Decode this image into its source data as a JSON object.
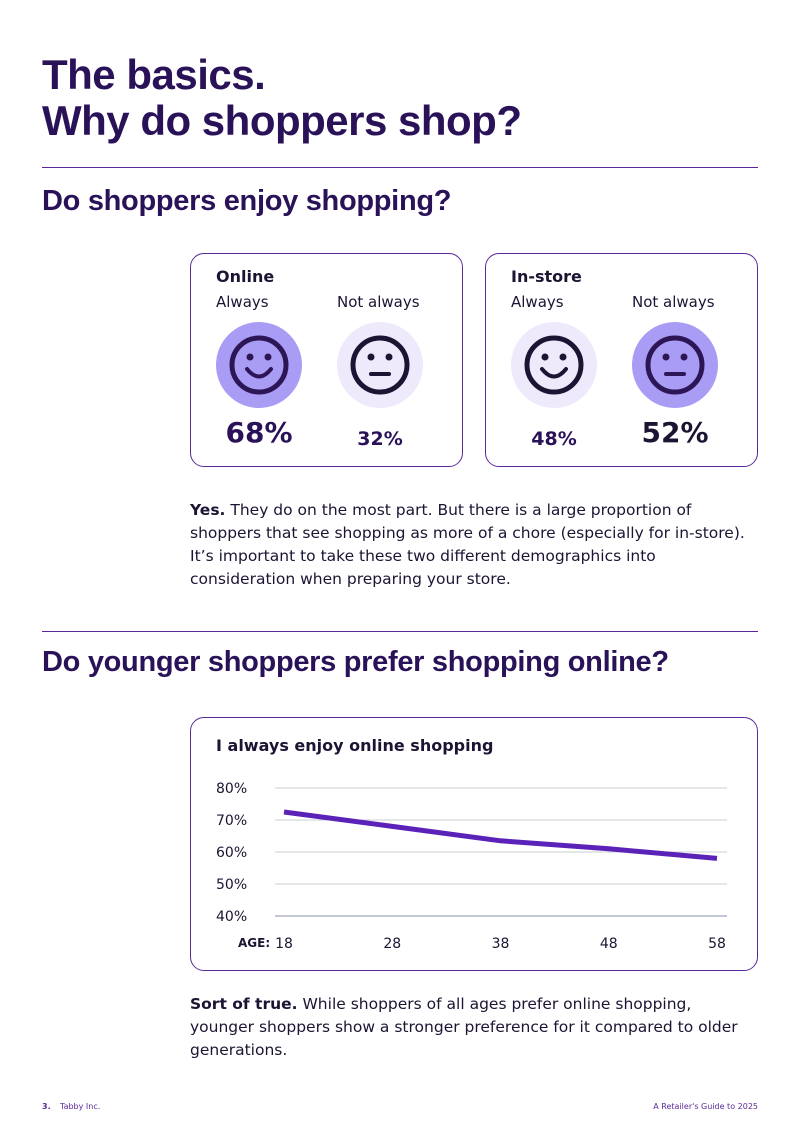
{
  "header": {
    "title_line1": "The basics.",
    "title_line2": "Why do shoppers shop?"
  },
  "section1": {
    "heading": "Do shoppers enjoy shopping?",
    "cards": [
      {
        "title": "Online",
        "items": [
          {
            "label": "Always",
            "value": "68%"
          },
          {
            "label": "Not always",
            "value": "32%"
          }
        ]
      },
      {
        "title": "In-store",
        "items": [
          {
            "label": "Always",
            "value": "48%"
          },
          {
            "label": "Not always",
            "value": "52%"
          }
        ]
      }
    ],
    "lead": "Yes.",
    "text": "They do on the most part. But there is a large proportion of shoppers that see shopping as more of a chore (especially for in-store). It’s important to take these two different demographics into consideration when preparing your store."
  },
  "section2": {
    "heading": "Do younger shoppers prefer shopping online?",
    "lead": "Sort of true.",
    "text": "While shoppers of all ages prefer online shopping, younger shoppers show a stronger preference for it compared to older generations."
  },
  "chart_data": {
    "type": "line",
    "title": "I always enjoy online shopping",
    "x_label": "AGE:",
    "x": [
      18,
      28,
      38,
      48,
      58
    ],
    "xlim": [
      18,
      58
    ],
    "xticks": [
      18,
      28,
      38,
      48,
      58
    ],
    "series": [
      {
        "name": "I always enjoy online shopping",
        "color": "#5b22b8",
        "values": [
          72.5,
          68,
          63.5,
          61,
          58
        ]
      }
    ],
    "ylim": [
      40,
      80
    ],
    "yticks": [
      {
        "value": 40,
        "label": "40%"
      },
      {
        "value": 50,
        "label": "50%"
      },
      {
        "value": 60,
        "label": "60%"
      },
      {
        "value": 70,
        "label": "70%"
      },
      {
        "value": 80,
        "label": "80%"
      }
    ],
    "grid": true
  },
  "footer": {
    "page": "3.",
    "company": "Tabby Inc.",
    "doc": "A Retailer's Guide to 2025"
  }
}
